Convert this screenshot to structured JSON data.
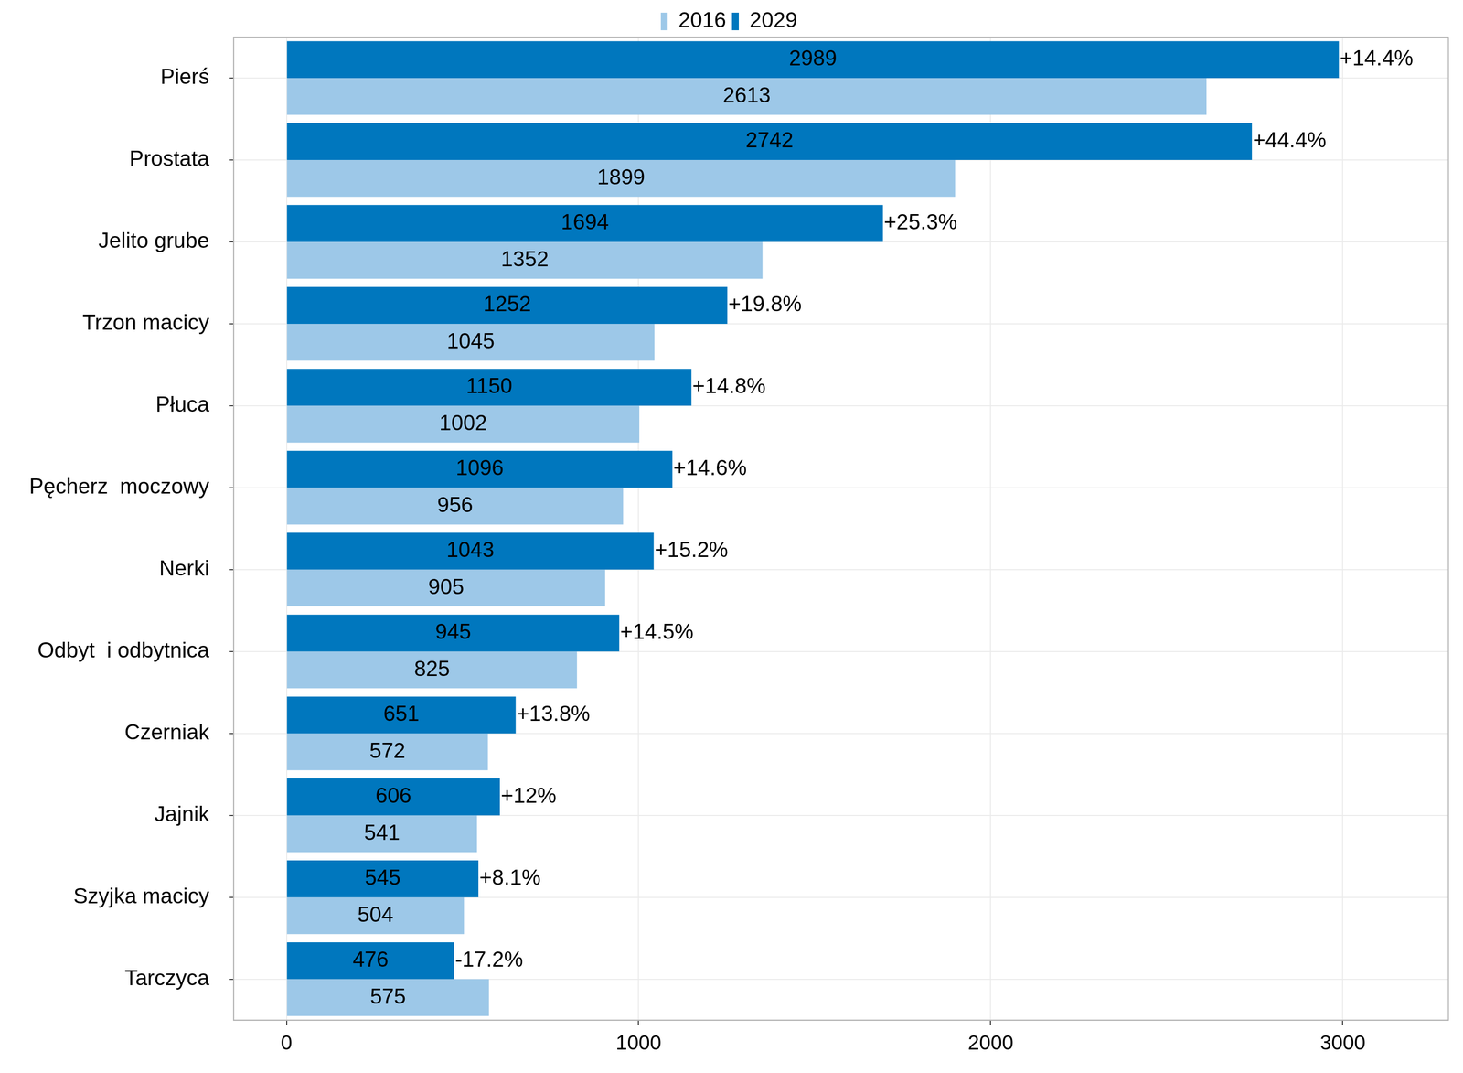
{
  "chart_data": {
    "type": "bar",
    "orientation": "horizontal",
    "categories": [
      "Pierś",
      "Prostata",
      "Jelito grube",
      "Trzon macicy",
      "Płuca",
      "Pęcherz  moczowy",
      "Nerki",
      "Odbyt  i odbytnica",
      "Czerniak",
      "Jajnik",
      "Szyjka macicy",
      "Tarczyca"
    ],
    "series": [
      {
        "name": "2029",
        "color": "#0077be",
        "values": [
          2989,
          2742,
          1694,
          1252,
          1150,
          1096,
          1043,
          945,
          651,
          606,
          545,
          476
        ]
      },
      {
        "name": "2016",
        "color": "#9dc8e8",
        "values": [
          2613,
          1899,
          1352,
          1045,
          1002,
          956,
          905,
          825,
          572,
          541,
          504,
          575
        ]
      }
    ],
    "annotations": [
      "+14.4%",
      "+44.4%",
      "+25.3%",
      "+19.8%",
      "+14.8%",
      "+14.6%",
      "+15.2%",
      "+14.5%",
      "+13.8%",
      "+12%",
      "+8.1%",
      "-17.2%"
    ],
    "xlim": [
      -150,
      3300
    ],
    "xticks": [
      0,
      1000,
      2000,
      3000
    ],
    "grid": true,
    "legend": "top",
    "data_labels": true
  }
}
